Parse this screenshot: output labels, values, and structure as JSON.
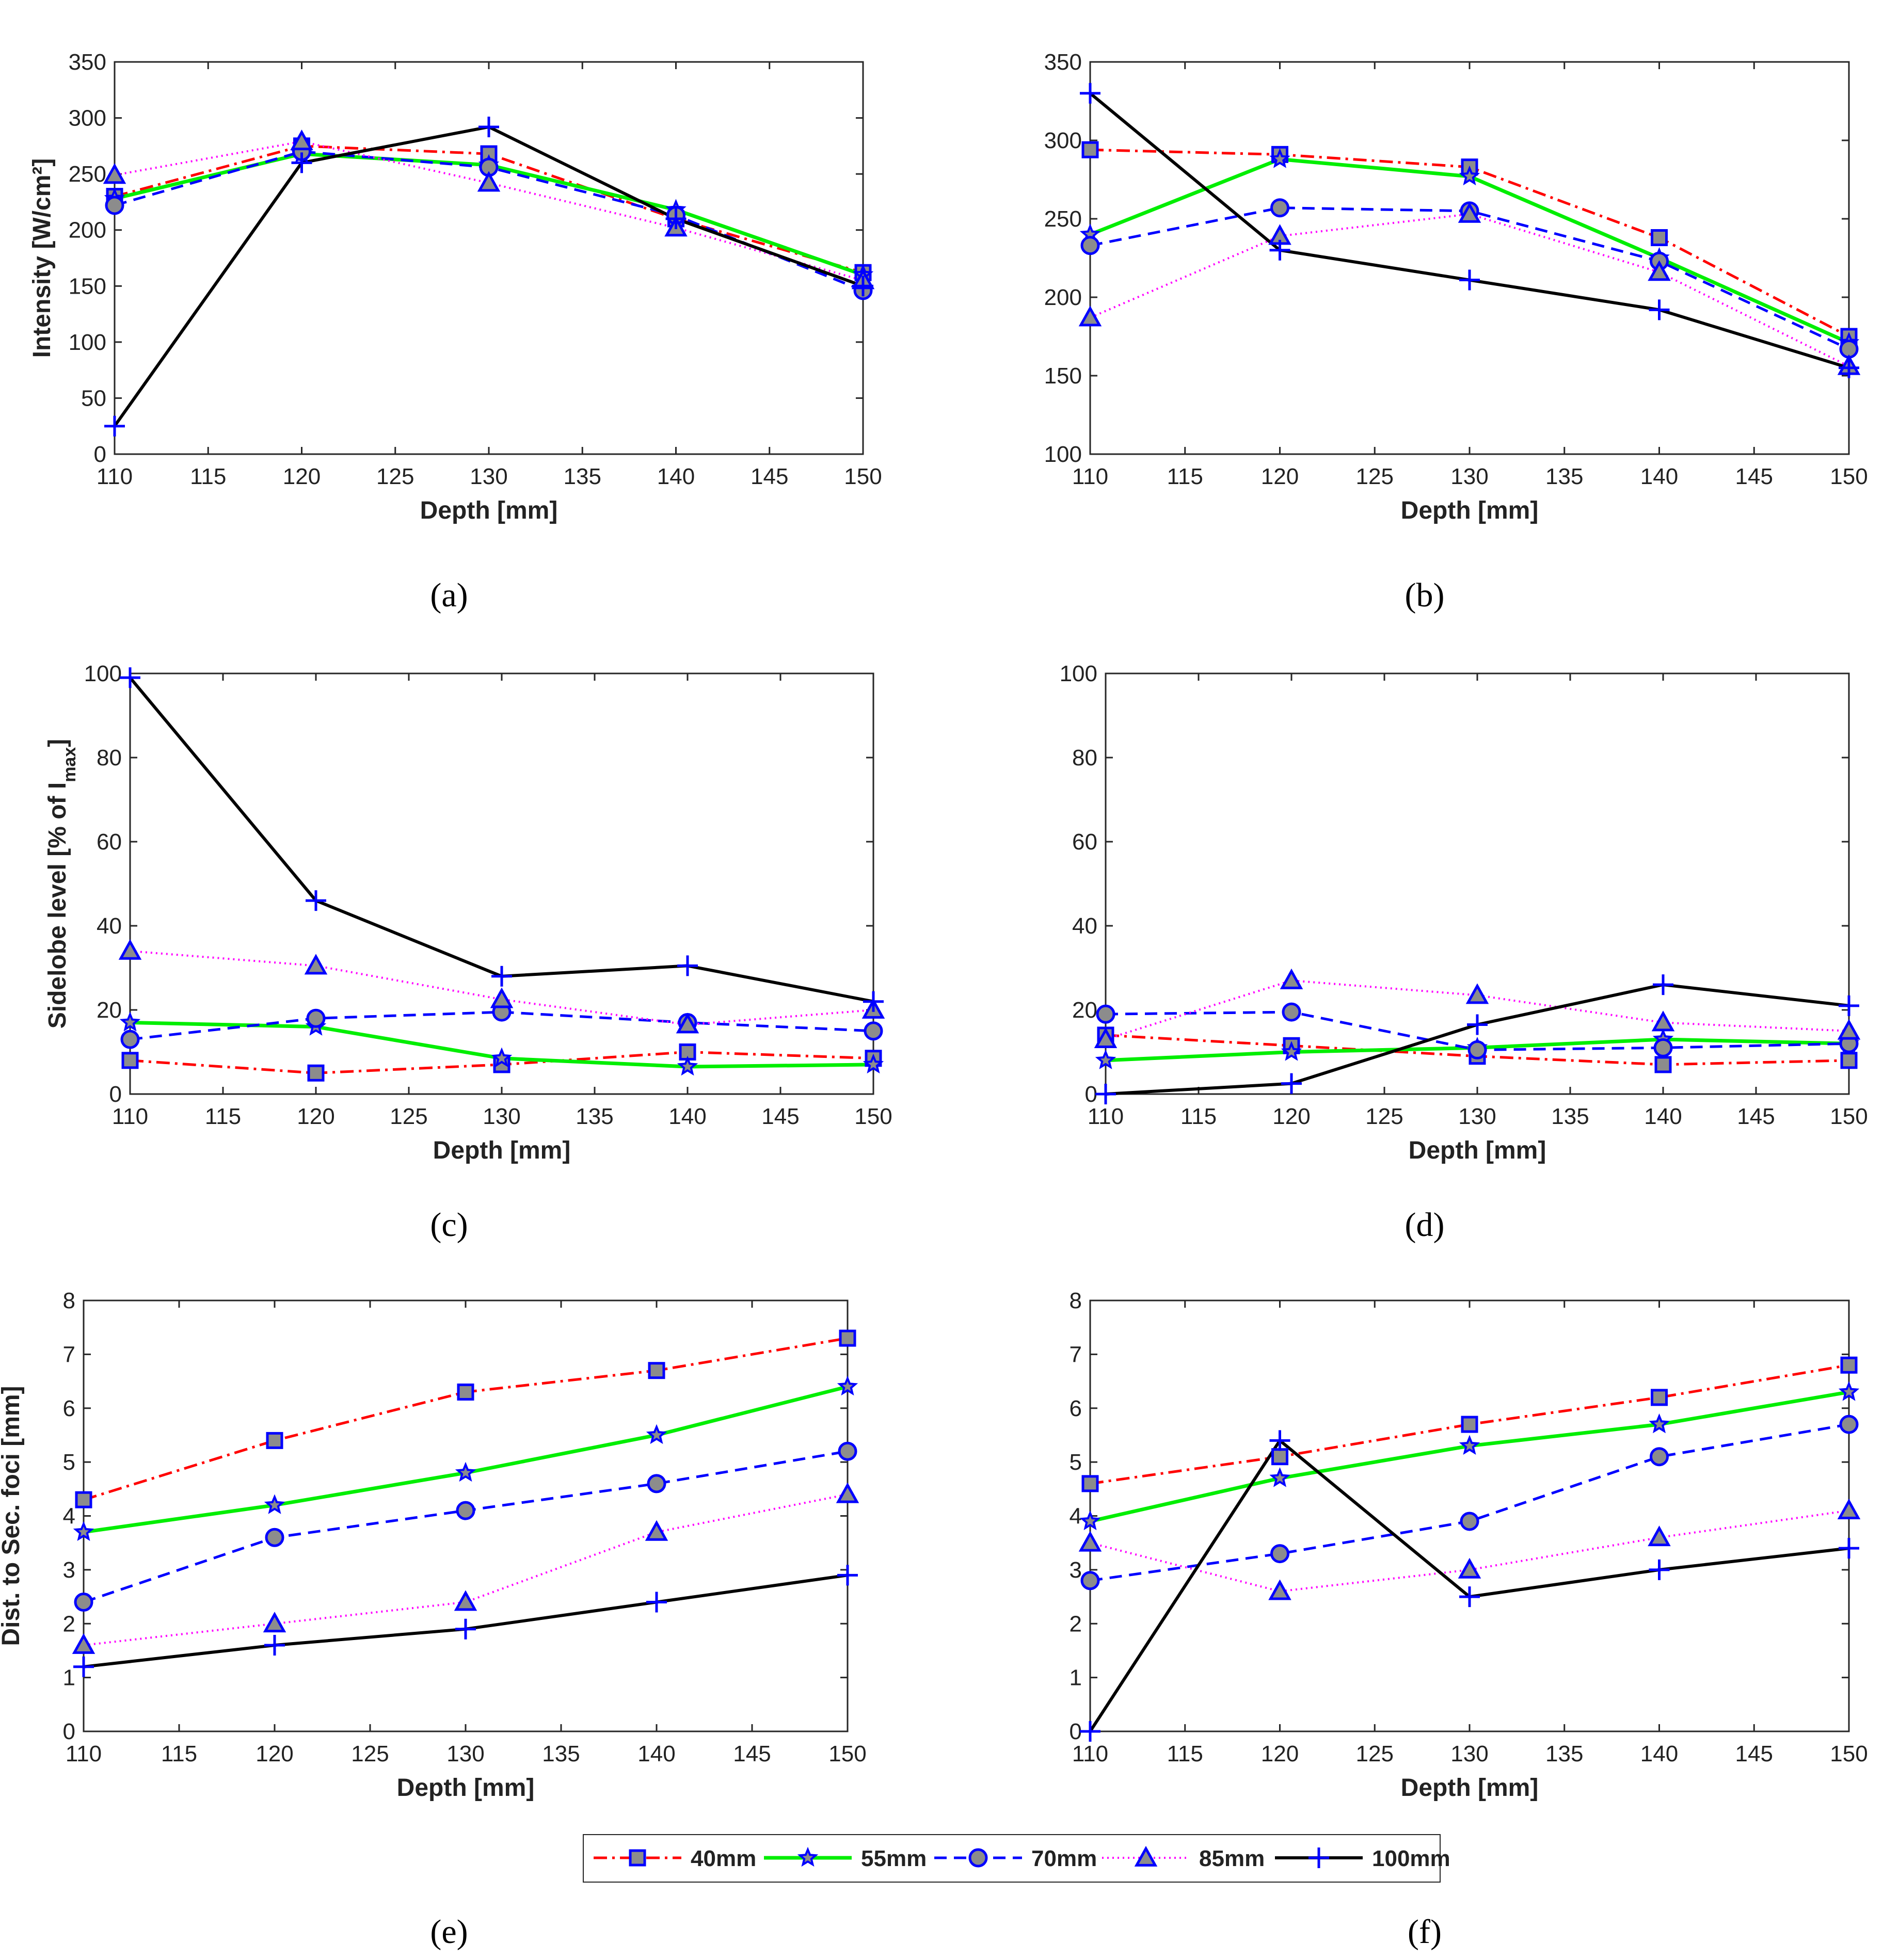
{
  "series_styles": [
    {
      "name": "40mm",
      "color": "#ff0000",
      "dash": "26 10 5 10",
      "width": 5,
      "marker": "square"
    },
    {
      "name": "55mm",
      "color": "#00ee00",
      "dash": "",
      "width": 7,
      "marker": "star"
    },
    {
      "name": "70mm",
      "color": "#0000ff",
      "dash": "24 14",
      "width": 5,
      "marker": "circle"
    },
    {
      "name": "85mm",
      "color": "#ff00ff",
      "dash": "3 7",
      "width": 4,
      "marker": "triangle"
    },
    {
      "name": "100mm",
      "color": "#000000",
      "dash": "",
      "width": 6,
      "marker": "plus"
    }
  ],
  "marker_edge_color": "#0000ff",
  "marker_face_color": "#8c8c8c",
  "legend": {
    "entries": [
      "40mm",
      "55mm",
      "70mm",
      "85mm",
      "100mm"
    ]
  },
  "chart_data": [
    {
      "id": "a",
      "type": "line",
      "panel_label": "(a)",
      "xlabel": "Depth [mm]",
      "ylabel": "Intensity [W/cm²]",
      "xlim": [
        110,
        150
      ],
      "ylim": [
        0,
        350
      ],
      "xticks": [
        110,
        115,
        120,
        125,
        130,
        135,
        140,
        145,
        150
      ],
      "yticks": [
        0,
        50,
        100,
        150,
        200,
        250,
        300,
        350
      ],
      "x": [
        110,
        120,
        130,
        140,
        150
      ],
      "series": [
        {
          "name": "40mm",
          "values": [
            230,
            275,
            268,
            210,
            162
          ]
        },
        {
          "name": "55mm",
          "values": [
            228,
            268,
            258,
            218,
            160
          ]
        },
        {
          "name": "70mm",
          "values": [
            222,
            270,
            256,
            213,
            146
          ]
        },
        {
          "name": "85mm",
          "values": [
            249,
            279,
            242,
            202,
            155
          ]
        },
        {
          "name": "100mm",
          "values": [
            25,
            260,
            292,
            210,
            150
          ]
        }
      ]
    },
    {
      "id": "b",
      "type": "line",
      "panel_label": "(b)",
      "xlabel": "Depth [mm]",
      "ylabel": "",
      "xlim": [
        110,
        150
      ],
      "ylim": [
        100,
        350
      ],
      "xticks": [
        110,
        115,
        120,
        125,
        130,
        135,
        140,
        145,
        150
      ],
      "yticks": [
        100,
        150,
        200,
        250,
        300,
        350
      ],
      "x": [
        110,
        120,
        130,
        140,
        150
      ],
      "series": [
        {
          "name": "40mm",
          "values": [
            294,
            291,
            283,
            238,
            175
          ]
        },
        {
          "name": "55mm",
          "values": [
            240,
            288,
            277,
            225,
            171
          ]
        },
        {
          "name": "70mm",
          "values": [
            233,
            257,
            255,
            223,
            167
          ]
        },
        {
          "name": "85mm",
          "values": [
            187,
            239,
            253,
            216,
            156
          ]
        },
        {
          "name": "100mm",
          "values": [
            330,
            230,
            211,
            192,
            155
          ]
        }
      ]
    },
    {
      "id": "c",
      "type": "line",
      "panel_label": "(c)",
      "xlabel": "Depth [mm]",
      "ylabel": "Sidelobe level [% of I",
      "ylabel_sub": "max",
      "ylabel_end": "]",
      "xlim": [
        110,
        150
      ],
      "ylim": [
        0,
        100
      ],
      "xticks": [
        110,
        115,
        120,
        125,
        130,
        135,
        140,
        145,
        150
      ],
      "yticks": [
        0,
        20,
        40,
        60,
        80,
        100
      ],
      "x": [
        110,
        120,
        130,
        140,
        150
      ],
      "series": [
        {
          "name": "40mm",
          "values": [
            8,
            5,
            7,
            10,
            8.5
          ]
        },
        {
          "name": "55mm",
          "values": [
            17,
            16,
            8.5,
            6.5,
            7
          ]
        },
        {
          "name": "70mm",
          "values": [
            13,
            18,
            19.5,
            17,
            15
          ]
        },
        {
          "name": "85mm",
          "values": [
            34,
            30.5,
            22.5,
            16.5,
            20
          ]
        },
        {
          "name": "100mm",
          "values": [
            99,
            46,
            28,
            30.5,
            22
          ]
        }
      ]
    },
    {
      "id": "d",
      "type": "line",
      "panel_label": "(d)",
      "xlabel": "Depth [mm]",
      "ylabel": "",
      "xlim": [
        110,
        150
      ],
      "ylim": [
        0,
        100
      ],
      "xticks": [
        110,
        115,
        120,
        125,
        130,
        135,
        140,
        145,
        150
      ],
      "yticks": [
        0,
        20,
        40,
        60,
        80,
        100
      ],
      "x": [
        110,
        120,
        130,
        140,
        150
      ],
      "series": [
        {
          "name": "40mm",
          "values": [
            14,
            11.5,
            9,
            7,
            8
          ]
        },
        {
          "name": "55mm",
          "values": [
            8,
            10,
            11,
            13,
            12
          ]
        },
        {
          "name": "70mm",
          "values": [
            19,
            19.5,
            10.5,
            11,
            12
          ]
        },
        {
          "name": "85mm",
          "values": [
            13,
            27,
            23.5,
            17,
            15
          ]
        },
        {
          "name": "100mm",
          "values": [
            0,
            2.5,
            16.5,
            26,
            21
          ]
        }
      ]
    },
    {
      "id": "e",
      "type": "line",
      "panel_label": "(e)",
      "xlabel": "Depth [mm]",
      "ylabel": "Dist. to Sec. foci [mm]",
      "xlim": [
        110,
        150
      ],
      "ylim": [
        0,
        8
      ],
      "xticks": [
        110,
        115,
        120,
        125,
        130,
        135,
        140,
        145,
        150
      ],
      "yticks": [
        0,
        1,
        2,
        3,
        4,
        5,
        6,
        7,
        8
      ],
      "x": [
        110,
        120,
        130,
        140,
        150
      ],
      "series": [
        {
          "name": "40mm",
          "values": [
            4.3,
            5.4,
            6.3,
            6.7,
            7.3
          ]
        },
        {
          "name": "55mm",
          "values": [
            3.7,
            4.2,
            4.8,
            5.5,
            6.4
          ]
        },
        {
          "name": "70mm",
          "values": [
            2.4,
            3.6,
            4.1,
            4.6,
            5.2
          ]
        },
        {
          "name": "85mm",
          "values": [
            1.6,
            2.0,
            2.4,
            3.7,
            4.4
          ]
        },
        {
          "name": "100mm",
          "values": [
            1.2,
            1.6,
            1.9,
            2.4,
            2.9
          ]
        }
      ]
    },
    {
      "id": "f",
      "type": "line",
      "panel_label": "(f)",
      "xlabel": "Depth [mm]",
      "ylabel": "",
      "xlim": [
        110,
        150
      ],
      "ylim": [
        0,
        8
      ],
      "xticks": [
        110,
        115,
        120,
        125,
        130,
        135,
        140,
        145,
        150
      ],
      "yticks": [
        0,
        1,
        2,
        3,
        4,
        5,
        6,
        7,
        8
      ],
      "x": [
        110,
        120,
        130,
        140,
        150
      ],
      "series": [
        {
          "name": "40mm",
          "values": [
            4.6,
            5.1,
            5.7,
            6.2,
            6.8
          ]
        },
        {
          "name": "55mm",
          "values": [
            3.9,
            4.7,
            5.3,
            5.7,
            6.3
          ]
        },
        {
          "name": "70mm",
          "values": [
            2.8,
            3.3,
            3.9,
            5.1,
            5.7
          ]
        },
        {
          "name": "85mm",
          "values": [
            3.5,
            2.6,
            3.0,
            3.6,
            4.1
          ]
        },
        {
          "name": "100mm",
          "values": [
            0,
            5.4,
            2.5,
            3.0,
            3.4
          ]
        }
      ]
    }
  ]
}
